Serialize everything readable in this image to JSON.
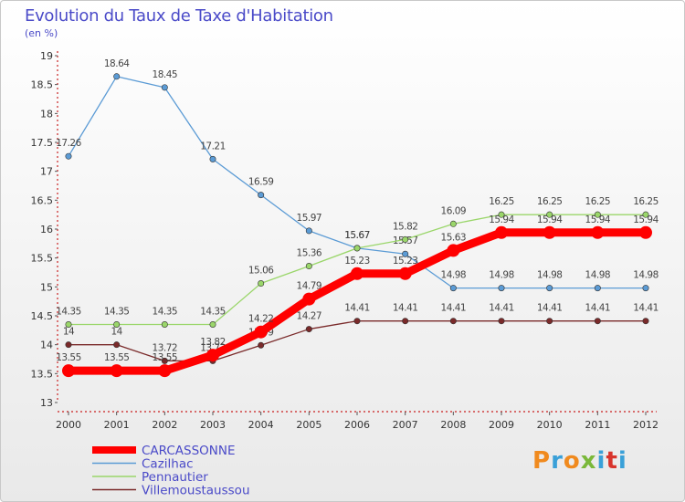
{
  "header": {
    "title": "Evolution du Taux de Taxe d'Habitation",
    "subtitle": "(en %)"
  },
  "logo": {
    "text": "Proxiti",
    "colors": [
      "#f08a1e",
      "#3aa0d8",
      "#f08a1e",
      "#7ab83a",
      "#3aa0d8",
      "#d8342c",
      "#3aa0d8"
    ]
  },
  "chart_data": {
    "type": "line",
    "title": "Evolution du Taux de Taxe d'Habitation",
    "ylabel": "(en %)",
    "xlabel": "",
    "x": [
      "2000",
      "2001",
      "2002",
      "2003",
      "2004",
      "2005",
      "2006",
      "2007",
      "2008",
      "2009",
      "2010",
      "2011",
      "2012"
    ],
    "ylim": [
      13,
      19
    ],
    "yticks": [
      "13",
      "13.5",
      "14",
      "14.5",
      "15",
      "15.5",
      "16",
      "16.5",
      "17",
      "17.5",
      "18",
      "18.5",
      "19"
    ],
    "grid": false,
    "legend_position": "bottom-left",
    "series": [
      {
        "name": "Cazilhac",
        "color": "#5b9bd5",
        "values": [
          17.26,
          18.64,
          18.45,
          17.21,
          16.59,
          15.97,
          15.67,
          15.57,
          14.98,
          14.98,
          14.98,
          14.98,
          14.98
        ],
        "labels": [
          "17.26",
          "18.64",
          "18.45",
          "17.21",
          "16.59",
          "15.97",
          "15.67",
          "15.57",
          "14.98",
          "14.98",
          "14.98",
          "14.98",
          "14.98"
        ]
      },
      {
        "name": "Pennautier",
        "color": "#9ad66a",
        "values": [
          14.35,
          14.35,
          14.35,
          14.35,
          15.06,
          15.36,
          15.67,
          15.82,
          16.09,
          16.25,
          16.25,
          16.25,
          16.25
        ],
        "labels": [
          "14.35",
          "14.35",
          "14.35",
          "14.35",
          "15.06",
          "15.36",
          "15.67",
          "15.82",
          "16.09",
          "16.25",
          "16.25",
          "16.25",
          "16.25"
        ]
      },
      {
        "name": "Villemoustaussou",
        "color": "#7a2a2a",
        "values": [
          14,
          14,
          13.72,
          13.72,
          13.99,
          14.27,
          14.41,
          14.41,
          14.41,
          14.41,
          14.41,
          14.41,
          14.41
        ],
        "labels": [
          "14",
          "14",
          "13.72",
          "13.72",
          "13.99",
          "14.27",
          "14.41",
          "14.41",
          "14.41",
          "14.41",
          "14.41",
          "14.41",
          "14.41"
        ]
      },
      {
        "name": "CARCASSONNE",
        "color": "#ff0000",
        "values": [
          13.55,
          13.55,
          13.55,
          13.82,
          14.22,
          14.79,
          15.23,
          15.23,
          15.63,
          15.94,
          15.94,
          15.94,
          15.94
        ],
        "labels": [
          "13.55",
          "13.55",
          "13.55",
          "13.82",
          "14.22",
          "14.79",
          "15.23",
          "15.23",
          "15.63",
          "15.94",
          "15.94",
          "15.94",
          "15.94"
        ]
      }
    ],
    "legend": [
      {
        "name": "CARCASSONNE",
        "color": "#ff0000",
        "text_color": "#4a4ac8"
      },
      {
        "name": "Cazilhac",
        "color": "#5b9bd5",
        "text_color": "#4a4ac8"
      },
      {
        "name": "Pennautier",
        "color": "#9ad66a",
        "text_color": "#4a4ac8"
      },
      {
        "name": "Villemoustaussou",
        "color": "#7a2a2a",
        "text_color": "#4a4ac8"
      }
    ]
  }
}
